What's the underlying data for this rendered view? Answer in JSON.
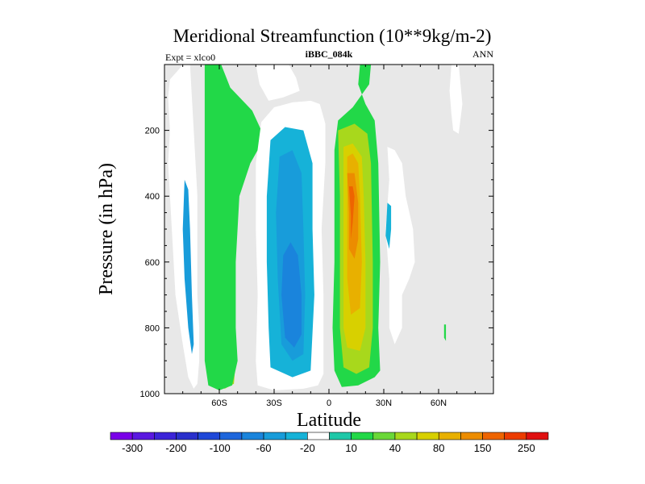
{
  "chart_data": {
    "type": "contour",
    "title": "Meridional Streamfunction (10**9kg/m-2)",
    "left_label": "Expt = xlco0",
    "center_label": "iBBC_084k",
    "right_label": "ANN",
    "xlabel": "Latitude",
    "ylabel": "Pressure (in hPa)",
    "xlim": [
      -90,
      90
    ],
    "ylim": [
      1000,
      0
    ],
    "x_ticks": [
      {
        "value": -60,
        "label": "60S"
      },
      {
        "value": -30,
        "label": "30S"
      },
      {
        "value": 0,
        "label": "0"
      },
      {
        "value": 30,
        "label": "30N"
      },
      {
        "value": 60,
        "label": "60N"
      }
    ],
    "y_ticks": [
      {
        "value": 200,
        "label": "200"
      },
      {
        "value": 400,
        "label": "400"
      },
      {
        "value": 600,
        "label": "600"
      },
      {
        "value": 800,
        "label": "800"
      },
      {
        "value": 1000,
        "label": "1000"
      }
    ],
    "contour_levels": [
      -300,
      -250,
      -200,
      -150,
      -100,
      -80,
      -60,
      -40,
      -20,
      -10,
      10,
      20,
      40,
      60,
      80,
      100,
      150,
      200,
      250,
      300
    ],
    "colorbar_labels": [
      "-300",
      "-200",
      "-100",
      "-60",
      "-20",
      "10",
      "40",
      "80",
      "150",
      "250"
    ],
    "colorbar_colors": [
      "#7a00e8",
      "#5a18e0",
      "#3c24d8",
      "#2a30cc",
      "#1f48d8",
      "#1e66dc",
      "#1a84dc",
      "#189cda",
      "#16b2d8",
      "#ffffff",
      "#1ec8a8",
      "#22d848",
      "#6ad838",
      "#a8d81c",
      "#d8d000",
      "#e8b000",
      "#ec8c00",
      "#ee6400",
      "#ec3c00",
      "#e01010"
    ],
    "background_color": "#e8e8e8",
    "cells": [
      {
        "name": "sh-polar-cell-outer",
        "value": -20,
        "points": [
          [
            -87,
            45
          ],
          [
            -88,
            100
          ],
          [
            -87,
            200
          ],
          [
            -88,
            300
          ],
          [
            -86,
            500
          ],
          [
            -84,
            700
          ],
          [
            -80,
            850
          ],
          [
            -77,
            950
          ],
          [
            -74,
            985
          ],
          [
            -72,
            970
          ],
          [
            -71,
            900
          ],
          [
            -71,
            800
          ],
          [
            -72,
            700
          ],
          [
            -72,
            400
          ],
          [
            -74,
            200
          ],
          [
            -76,
            0
          ],
          [
            -80,
            0
          ],
          [
            -83,
            20
          ]
        ]
      },
      {
        "name": "sh-polar-cell-core",
        "value": -60,
        "points": [
          [
            -79,
            350
          ],
          [
            -80,
            500
          ],
          [
            -79,
            650
          ],
          [
            -77,
            800
          ],
          [
            -75,
            880
          ],
          [
            -74,
            850
          ],
          [
            -75,
            700
          ],
          [
            -76,
            500
          ],
          [
            -77,
            380
          ]
        ]
      },
      {
        "name": "ferrel-cell",
        "value": 40,
        "points": [
          [
            -67,
            0
          ],
          [
            -67,
            200
          ],
          [
            -66,
            400
          ],
          [
            -66,
            600
          ],
          [
            -66,
            800
          ],
          [
            -65,
            900
          ],
          [
            -63,
            970
          ],
          [
            -57,
            985
          ],
          [
            -52,
            970
          ],
          [
            -51,
            900
          ],
          [
            -52,
            800
          ],
          [
            -52,
            600
          ],
          [
            -50,
            400
          ],
          [
            -45,
            300
          ],
          [
            -40,
            250
          ],
          [
            -38,
            200
          ],
          [
            -45,
            140
          ],
          [
            -56,
            70
          ],
          [
            -60,
            0
          ]
        ]
      },
      {
        "name": "ferrel-cell-edge",
        "value": 10,
        "points": [
          [
            -68,
            0
          ],
          [
            -59,
            0
          ],
          [
            -54,
            70
          ],
          [
            -42,
            140
          ],
          [
            -37,
            200
          ],
          [
            -38,
            250
          ],
          [
            -43,
            300
          ],
          [
            -49,
            400
          ],
          [
            -51,
            600
          ],
          [
            -51,
            800
          ],
          [
            -50,
            900
          ],
          [
            -53,
            975
          ],
          [
            -60,
            990
          ],
          [
            -66,
            975
          ],
          [
            -68,
            900
          ]
        ]
      },
      {
        "name": "sh-hadley-cell-outer",
        "value": -20,
        "points": [
          [
            -37,
            175
          ],
          [
            -40,
            300
          ],
          [
            -40,
            500
          ],
          [
            -39,
            700
          ],
          [
            -40,
            900
          ],
          [
            -39,
            975
          ],
          [
            -30,
            990
          ],
          [
            -14,
            985
          ],
          [
            -6,
            975
          ],
          [
            -3,
            940
          ],
          [
            -3,
            700
          ],
          [
            -4,
            500
          ],
          [
            -2,
            300
          ],
          [
            -2,
            180
          ],
          [
            -5,
            120
          ],
          [
            -10,
            110
          ],
          [
            -20,
            115
          ],
          [
            -30,
            130
          ]
        ]
      },
      {
        "name": "sh-hadley-cell-mid",
        "value": -40,
        "points": [
          [
            -32,
            230
          ],
          [
            -34,
            400
          ],
          [
            -34,
            600
          ],
          [
            -33,
            800
          ],
          [
            -32,
            920
          ],
          [
            -20,
            950
          ],
          [
            -10,
            930
          ],
          [
            -8,
            700
          ],
          [
            -9,
            500
          ],
          [
            -9,
            300
          ],
          [
            -14,
            200
          ],
          [
            -24,
            190
          ]
        ]
      },
      {
        "name": "sh-hadley-cell-inner",
        "value": -60,
        "points": [
          [
            -27,
            280
          ],
          [
            -29,
            450
          ],
          [
            -28,
            650
          ],
          [
            -26,
            850
          ],
          [
            -20,
            900
          ],
          [
            -14,
            880
          ],
          [
            -13,
            700
          ],
          [
            -14,
            500
          ],
          [
            -15,
            330
          ],
          [
            -20,
            260
          ]
        ]
      },
      {
        "name": "sh-hadley-cell-core",
        "value": -80,
        "points": [
          [
            -25,
            580
          ],
          [
            -26,
            700
          ],
          [
            -24,
            830
          ],
          [
            -19,
            860
          ],
          [
            -15,
            820
          ],
          [
            -15,
            700
          ],
          [
            -17,
            580
          ],
          [
            -21,
            540
          ]
        ]
      },
      {
        "name": "stratospheric-cell",
        "value": -20,
        "points": [
          [
            -40,
            0
          ],
          [
            -38,
            60
          ],
          [
            -33,
            110
          ],
          [
            -25,
            100
          ],
          [
            -16,
            80
          ],
          [
            -18,
            40
          ],
          [
            -22,
            0
          ]
        ]
      },
      {
        "name": "nh-hadley-cell-outer",
        "value": 10,
        "points": [
          [
            3,
            260
          ],
          [
            3,
            400
          ],
          [
            3,
            600
          ],
          [
            2,
            800
          ],
          [
            3,
            930
          ],
          [
            7,
            980
          ],
          [
            16,
            975
          ],
          [
            25,
            950
          ],
          [
            28,
            930
          ],
          [
            27,
            800
          ],
          [
            28,
            600
          ],
          [
            27,
            300
          ],
          [
            25,
            170
          ],
          [
            20,
            120
          ],
          [
            16,
            60
          ],
          [
            17,
            0
          ],
          [
            23,
            0
          ],
          [
            22,
            60
          ],
          [
            13,
            130
          ],
          [
            5,
            170
          ]
        ]
      },
      {
        "name": "nh-hadley-cell-40",
        "value": 40,
        "points": [
          [
            5,
            200
          ],
          [
            6,
            400
          ],
          [
            6,
            600
          ],
          [
            6,
            800
          ],
          [
            8,
            920
          ],
          [
            15,
            940
          ],
          [
            22,
            920
          ],
          [
            24,
            800
          ],
          [
            24,
            600
          ],
          [
            23,
            300
          ],
          [
            21,
            210
          ],
          [
            14,
            180
          ]
        ]
      },
      {
        "name": "nh-hadley-cell-60",
        "value": 60,
        "points": [
          [
            8,
            250
          ],
          [
            8,
            400
          ],
          [
            8,
            600
          ],
          [
            8,
            800
          ],
          [
            10,
            860
          ],
          [
            17,
            870
          ],
          [
            20,
            800
          ],
          [
            20,
            600
          ],
          [
            19,
            400
          ],
          [
            18,
            280
          ],
          [
            13,
            240
          ]
        ]
      },
      {
        "name": "nh-hadley-cell-80",
        "value": 80,
        "points": [
          [
            10,
            280
          ],
          [
            10,
            450
          ],
          [
            10,
            650
          ],
          [
            12,
            760
          ],
          [
            17,
            740
          ],
          [
            18,
            600
          ],
          [
            17,
            400
          ],
          [
            16,
            300
          ],
          [
            13,
            270
          ]
        ]
      },
      {
        "name": "nh-hadley-cell-100",
        "value": 100,
        "points": [
          [
            10,
            330
          ],
          [
            11,
            450
          ],
          [
            11,
            560
          ],
          [
            14,
            590
          ],
          [
            16,
            530
          ],
          [
            16,
            420
          ],
          [
            14,
            330
          ]
        ]
      },
      {
        "name": "nh-hadley-cell-150",
        "value": 150,
        "points": [
          [
            11,
            370
          ],
          [
            12,
            460
          ],
          [
            12,
            530
          ],
          [
            13,
            480
          ],
          [
            14,
            400
          ],
          [
            13,
            370
          ]
        ]
      },
      {
        "name": "nh-ferrel-cell",
        "value": -20,
        "points": [
          [
            32,
            250
          ],
          [
            33,
            350
          ],
          [
            31,
            500
          ],
          [
            33,
            650
          ],
          [
            33,
            800
          ],
          [
            36,
            850
          ],
          [
            40,
            800
          ],
          [
            40,
            700
          ],
          [
            44,
            650
          ],
          [
            47,
            600
          ],
          [
            46,
            500
          ],
          [
            42,
            400
          ],
          [
            40,
            300
          ],
          [
            36,
            260
          ]
        ]
      },
      {
        "name": "nh-ferrel-cell-core",
        "value": -40,
        "points": [
          [
            32,
            420
          ],
          [
            31,
            520
          ],
          [
            33,
            560
          ],
          [
            34,
            500
          ],
          [
            34,
            430
          ]
        ]
      },
      {
        "name": "nh-stratospheric-strip",
        "value": -20,
        "points": [
          [
            67,
            0
          ],
          [
            66,
            80
          ],
          [
            67,
            150
          ],
          [
            68,
            200
          ],
          [
            71,
            210
          ],
          [
            73,
            120
          ],
          [
            71,
            0
          ]
        ]
      },
      {
        "name": "nh-small-feature",
        "value": 10,
        "points": [
          [
            63,
            790
          ],
          [
            63,
            830
          ],
          [
            64,
            840
          ],
          [
            64,
            790
          ]
        ]
      }
    ]
  }
}
